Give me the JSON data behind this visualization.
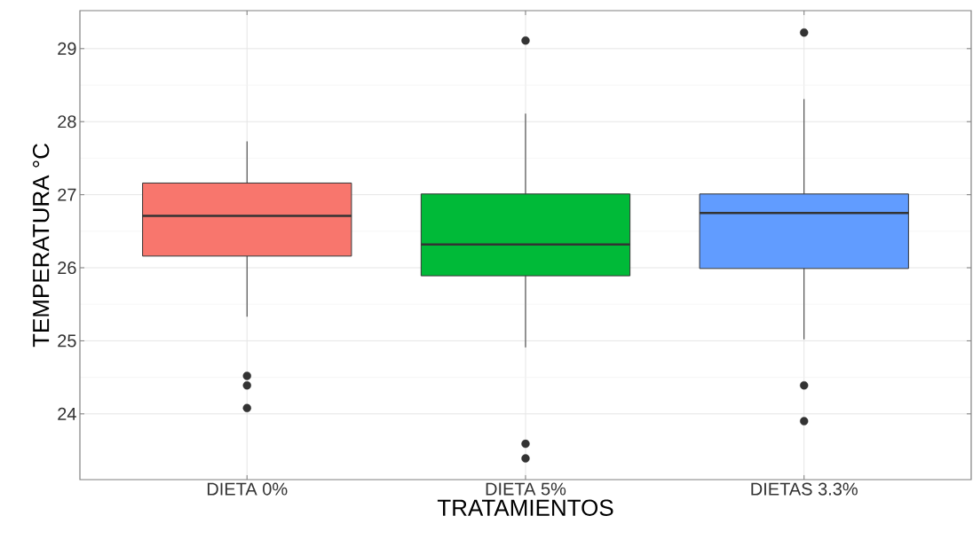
{
  "chart_data": {
    "type": "box",
    "xlabel": "TRATAMIENTOS",
    "ylabel": "TEMPERATURA °C",
    "categories": [
      "DIETA 0%",
      "DIETA 5%",
      "DIETAS 3.3%"
    ],
    "colors": [
      "#f8766d",
      "#00ba38",
      "#619cff"
    ],
    "boxes": [
      {
        "low": 25.33,
        "q1": 26.16,
        "median": 26.71,
        "q3": 27.16,
        "high": 27.73,
        "outliers": [
          24.52,
          24.39,
          24.08
        ]
      },
      {
        "low": 24.91,
        "q1": 25.89,
        "median": 26.32,
        "q3": 27.01,
        "high": 28.11,
        "outliers": [
          29.11,
          23.59,
          23.39
        ]
      },
      {
        "low": 25.02,
        "q1": 25.99,
        "median": 26.75,
        "q3": 27.01,
        "high": 28.31,
        "outliers": [
          29.22,
          24.39,
          23.9
        ]
      }
    ],
    "ylim": [
      23.1,
      29.52
    ],
    "yticks": [
      24,
      25,
      26,
      27,
      28,
      29
    ],
    "grid": true
  }
}
